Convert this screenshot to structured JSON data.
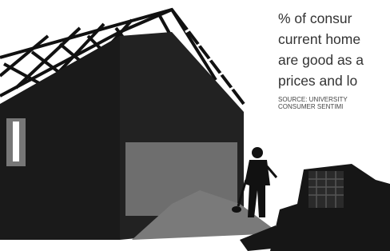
{
  "caption": {
    "lines": [
      "% of consur",
      "current home",
      "are good as a",
      "prices and lo"
    ],
    "source": [
      "SOURCE: UNIVERSITY",
      "CONSUMER SENTIMI"
    ]
  }
}
